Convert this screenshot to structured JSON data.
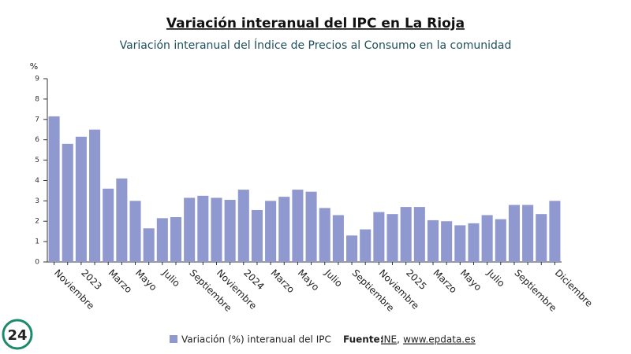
{
  "chart_data": {
    "type": "bar",
    "title": "Variación interanual del IPC en La Rioja",
    "subtitle": "Variación interanual del Índice de Precios al Consumo en la comunidad",
    "y_label": "%",
    "categories": [
      "Noviembre",
      null,
      "2023",
      null,
      "Marzo",
      null,
      "Mayo",
      null,
      "Julio",
      null,
      "Septiembre",
      null,
      "Noviembre",
      null,
      "2024",
      null,
      "Marzo",
      null,
      "Mayo",
      null,
      "Julio",
      null,
      "Septiembre",
      null,
      "Noviembre",
      null,
      "2025",
      null,
      "Marzo",
      null,
      "Mayo",
      null,
      "Julio",
      null,
      "Septiembre",
      null,
      null,
      "Diciembre"
    ],
    "series": [
      {
        "name": "Variación (%) interanual del IPC",
        "color": "#8f99cf",
        "values": [
          7.15,
          5.8,
          6.15,
          6.5,
          3.6,
          4.1,
          3.0,
          1.65,
          2.15,
          2.2,
          3.15,
          3.25,
          3.15,
          3.05,
          3.55,
          2.55,
          3.0,
          3.2,
          3.55,
          3.45,
          2.65,
          2.3,
          1.3,
          1.6,
          2.45,
          2.35,
          2.7,
          2.7,
          2.05,
          2.0,
          1.8,
          1.9,
          2.3,
          2.1,
          2.8,
          2.8,
          2.35,
          3.0
        ]
      }
    ],
    "ylim": [
      0,
      9
    ],
    "yticks": [
      0,
      1,
      2,
      3,
      4,
      5,
      6,
      7,
      8,
      9
    ],
    "source_label": "Fuente:",
    "source_links": [
      "INE",
      "www.epdata.es"
    ],
    "logo": "24"
  }
}
